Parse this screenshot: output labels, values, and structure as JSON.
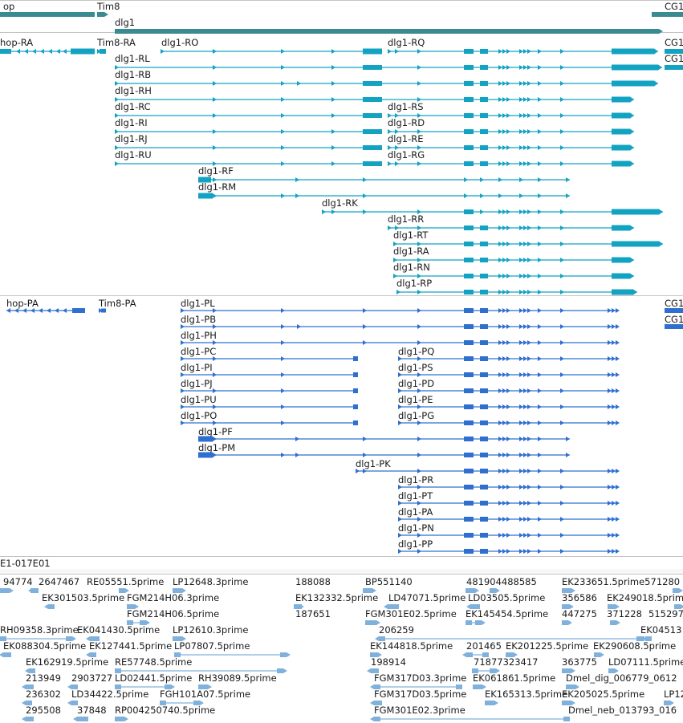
{
  "colors": {
    "gene": "#3a8b91",
    "mrna": "#13a3c2",
    "protein": "#2f6fcf",
    "est": "#7fb1dc",
    "divider": "#c4c4c4"
  },
  "track_gene": {
    "features": [
      {
        "label": "op",
        "glyph": "gene"
      },
      {
        "label": "Tim8",
        "glyph": "gene"
      },
      {
        "label": "dlg1",
        "glyph": "gene"
      },
      {
        "label": "CG1",
        "glyph": "gene"
      }
    ]
  },
  "track_mrna": {
    "features": [
      {
        "label": "hop-RA",
        "glyph": "reverse-transcript"
      },
      {
        "label": "Tim8-RA",
        "glyph": "small-forward"
      },
      {
        "label": "dlg1-RO",
        "glyph": "transcript"
      },
      {
        "label": "dlg1-RQ",
        "glyph": "transcript"
      },
      {
        "label": "CG1",
        "glyph": "truncated"
      },
      {
        "label": "dlg1-RL",
        "glyph": "transcript"
      },
      {
        "label": "CG1",
        "glyph": "truncated"
      },
      {
        "label": "dlg1-RB",
        "glyph": "transcript"
      },
      {
        "label": "dlg1-RH",
        "glyph": "transcript"
      },
      {
        "label": "dlg1-RC",
        "glyph": "transcript"
      },
      {
        "label": "dlg1-RS",
        "glyph": "transcript"
      },
      {
        "label": "dlg1-RI",
        "glyph": "transcript"
      },
      {
        "label": "dlg1-RD",
        "glyph": "transcript"
      },
      {
        "label": "dlg1-RJ",
        "glyph": "transcript"
      },
      {
        "label": "dlg1-RE",
        "glyph": "transcript"
      },
      {
        "label": "dlg1-RU",
        "glyph": "transcript"
      },
      {
        "label": "dlg1-RG",
        "glyph": "transcript"
      },
      {
        "label": "dlg1-RF",
        "glyph": "transcript"
      },
      {
        "label": "dlg1-RM",
        "glyph": "transcript"
      },
      {
        "label": "dlg1-RK",
        "glyph": "transcript"
      },
      {
        "label": "dlg1-RR",
        "glyph": "transcript"
      },
      {
        "label": "dlg1-RT",
        "glyph": "transcript"
      },
      {
        "label": "dlg1-RA",
        "glyph": "transcript"
      },
      {
        "label": "dlg1-RN",
        "glyph": "transcript"
      },
      {
        "label": "dlg1-RP",
        "glyph": "transcript"
      }
    ]
  },
  "track_protein": {
    "features": [
      {
        "label": "hop-PA",
        "glyph": "reverse-transcript"
      },
      {
        "label": "Tim8-PA",
        "glyph": "small-forward"
      },
      {
        "label": "CG1",
        "glyph": "truncated"
      },
      {
        "label": "dlg1-PL",
        "glyph": "transcript"
      },
      {
        "label": "CG1",
        "glyph": "truncated"
      },
      {
        "label": "dlg1-PB",
        "glyph": "transcript"
      },
      {
        "label": "dlg1-PH",
        "glyph": "transcript"
      },
      {
        "label": "dlg1-PC",
        "glyph": "transcript"
      },
      {
        "label": "dlg1-PQ",
        "glyph": "transcript"
      },
      {
        "label": "dlg1-PI",
        "glyph": "transcript"
      },
      {
        "label": "dlg1-PS",
        "glyph": "transcript"
      },
      {
        "label": "dlg1-PJ",
        "glyph": "transcript"
      },
      {
        "label": "dlg1-PD",
        "glyph": "transcript"
      },
      {
        "label": "dlg1-PU",
        "glyph": "transcript"
      },
      {
        "label": "dlg1-PE",
        "glyph": "transcript"
      },
      {
        "label": "dlg1-PO",
        "glyph": "transcript"
      },
      {
        "label": "dlg1-PG",
        "glyph": "transcript"
      },
      {
        "label": "dlg1-PF",
        "glyph": "transcript"
      },
      {
        "label": "dlg1-PM",
        "glyph": "transcript"
      },
      {
        "label": "dlg1-PK",
        "glyph": "transcript"
      },
      {
        "label": "dlg1-PR",
        "glyph": "transcript"
      },
      {
        "label": "dlg1-PT",
        "glyph": "transcript"
      },
      {
        "label": "dlg1-PA",
        "glyph": "transcript"
      },
      {
        "label": "dlg1-PN",
        "glyph": "transcript"
      },
      {
        "label": "dlg1-PP",
        "glyph": "transcript"
      }
    ]
  },
  "track_clone": {
    "features": [
      {
        "label": "E1-017E01"
      }
    ]
  },
  "track_est": {
    "features": [
      {
        "label": "94774"
      },
      {
        "label": "2647467"
      },
      {
        "label": "RE05551.5prime"
      },
      {
        "label": "LP12648.3prime"
      },
      {
        "label": "188088"
      },
      {
        "label": "BP551140"
      },
      {
        "label": "481904488585"
      },
      {
        "label": "EK233651.5prime571280"
      },
      {
        "label": "EK301503.5prime"
      },
      {
        "label": "FGM214H06.3prime"
      },
      {
        "label": "EK132332.5prime"
      },
      {
        "label": "LD47071.5prime"
      },
      {
        "label": "LD03505.5prime"
      },
      {
        "label": "356586"
      },
      {
        "label": "EK249018.5prime"
      },
      {
        "label": "FGM214H06.5prime"
      },
      {
        "label": "187651"
      },
      {
        "label": "FGM301E02.5prime"
      },
      {
        "label": "EK145454.5prime"
      },
      {
        "label": "447275"
      },
      {
        "label": "371228"
      },
      {
        "label": "515297"
      },
      {
        "label": "RH09358.3prime"
      },
      {
        "label": "EK041430.5prime"
      },
      {
        "label": "LP12610.3prime"
      },
      {
        "label": "206259"
      },
      {
        "label": "EK04513"
      },
      {
        "label": "EK088304.5prime"
      },
      {
        "label": "EK127441.5prime"
      },
      {
        "label": "LP07807.5prime"
      },
      {
        "label": "EK144818.5prime"
      },
      {
        "label": "201465"
      },
      {
        "label": "EK201225.5prime"
      },
      {
        "label": "EK290608.5prime"
      },
      {
        "label": "EK162919.5prime"
      },
      {
        "label": "RE57748.5prime"
      },
      {
        "label": "198914"
      },
      {
        "label": "71877323417"
      },
      {
        "label": "363775"
      },
      {
        "label": "LD07111.5prime"
      },
      {
        "label": "213949"
      },
      {
        "label": "2903727"
      },
      {
        "label": "LD02441.5prime"
      },
      {
        "label": "RH39089.5prime"
      },
      {
        "label": "FGM317D03.3prime"
      },
      {
        "label": "EK061861.5prime"
      },
      {
        "label": "Dmel_dig_006779_0612"
      },
      {
        "label": "236302"
      },
      {
        "label": "LD34422.5prime"
      },
      {
        "label": "FGH101A07.5prime"
      },
      {
        "label": "FGM317D03.5prime"
      },
      {
        "label": "EK165313.5prime"
      },
      {
        "label": "EK205025.5prime"
      },
      {
        "label": "LP12"
      },
      {
        "label": "295508"
      },
      {
        "label": "37848"
      },
      {
        "label": "RP004250740.5prime"
      },
      {
        "label": "FGM301E02.3prime"
      },
      {
        "label": "Dmel_neb_013793_016"
      }
    ]
  }
}
